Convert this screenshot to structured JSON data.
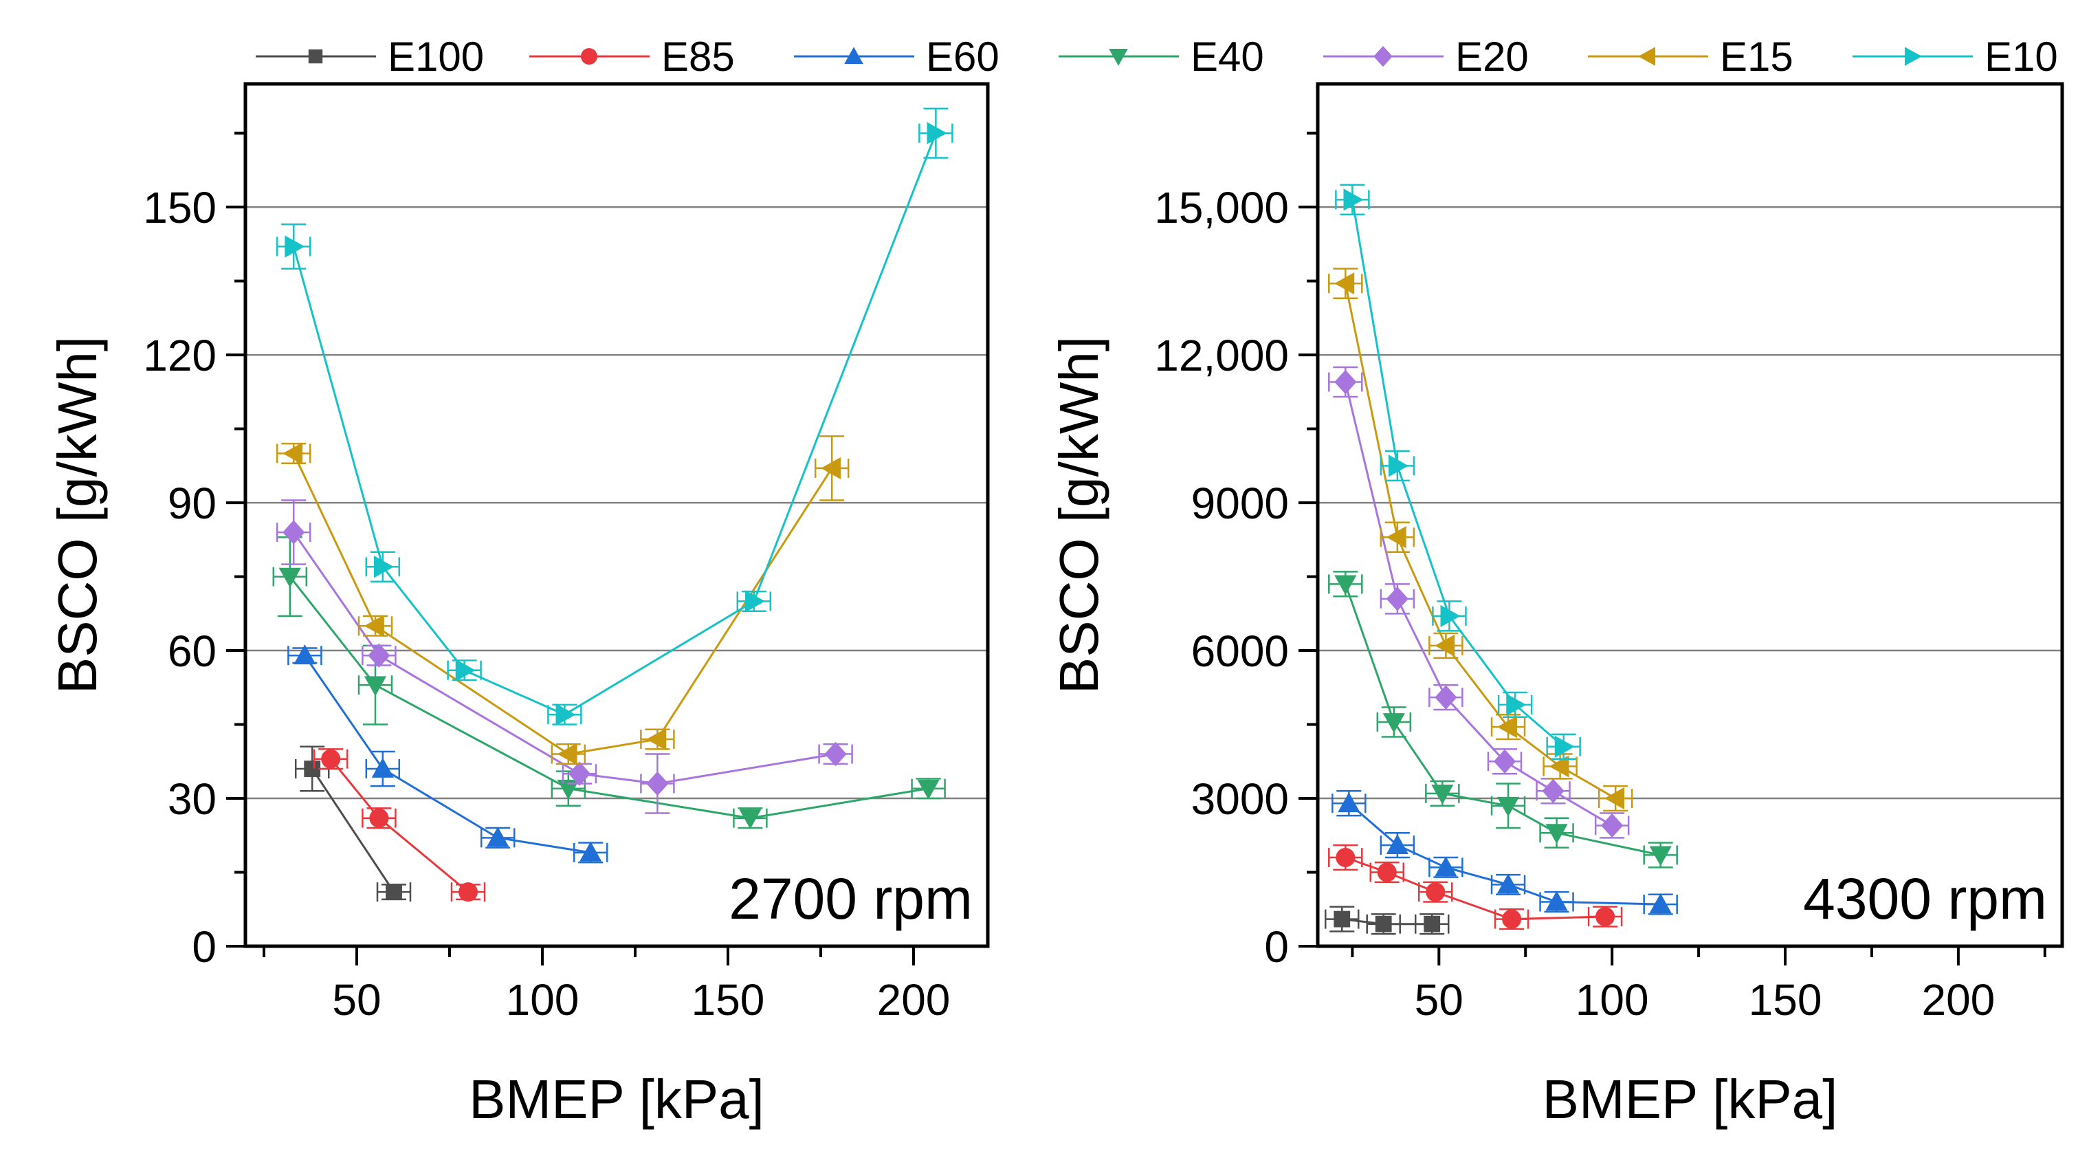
{
  "legend": [
    {
      "name": "E100",
      "color": "#4d4d4d",
      "marker": "square"
    },
    {
      "name": "E85",
      "color": "#e8383d",
      "marker": "circle"
    },
    {
      "name": "E60",
      "color": "#1f6fd6",
      "marker": "triangle-up"
    },
    {
      "name": "E40",
      "color": "#2ea66a",
      "marker": "triangle-down"
    },
    {
      "name": "E20",
      "color": "#a874dd",
      "marker": "diamond"
    },
    {
      "name": "E15",
      "color": "#c99a10",
      "marker": "triangle-left"
    },
    {
      "name": "E10",
      "color": "#14c2c8",
      "marker": "triangle-right"
    }
  ],
  "chart_data": [
    {
      "type": "line",
      "annotation": "2700 rpm",
      "xlabel": "BMEP [kPa]",
      "ylabel": "BSCO [g/kWh]",
      "xlim": [
        20,
        220
      ],
      "ylim": [
        0,
        175
      ],
      "xticks": [
        50,
        100,
        150,
        200
      ],
      "xtick_labels": [
        "50",
        "100",
        "150",
        "200"
      ],
      "yticks": [
        0,
        30,
        60,
        90,
        120,
        150
      ],
      "ytick_labels": [
        "0",
        "30",
        "60",
        "90",
        "120",
        "150"
      ],
      "grid": "horizontal",
      "series": [
        {
          "name": "E100",
          "x": [
            38,
            60
          ],
          "y": [
            36,
            11
          ],
          "yerr": [
            4.5,
            1.5
          ]
        },
        {
          "name": "E85",
          "x": [
            43,
            56,
            80
          ],
          "y": [
            38,
            26,
            11
          ],
          "yerr": [
            2.0,
            2.0,
            1.5
          ]
        },
        {
          "name": "E60",
          "x": [
            36,
            57,
            88,
            113
          ],
          "y": [
            59,
            36,
            22,
            19
          ],
          "yerr": [
            1.5,
            3.5,
            2.0,
            2.0
          ]
        },
        {
          "name": "E40",
          "x": [
            32,
            55,
            107,
            156,
            204
          ],
          "y": [
            75,
            53,
            32,
            26,
            32
          ],
          "yerr": [
            8.0,
            8.0,
            3.5,
            2.0,
            2.0
          ]
        },
        {
          "name": "E20",
          "x": [
            33,
            56,
            110,
            131,
            179
          ],
          "y": [
            84,
            59,
            35,
            33,
            39
          ],
          "yerr": [
            6.5,
            2.0,
            2.0,
            6.0,
            2.0
          ]
        },
        {
          "name": "E15",
          "x": [
            33,
            55,
            107,
            131,
            178
          ],
          "y": [
            100,
            65,
            39,
            42,
            97
          ],
          "yerr": [
            2.0,
            2.0,
            2.0,
            2.0,
            6.5
          ]
        },
        {
          "name": "E10",
          "x": [
            33,
            57,
            79,
            106,
            157,
            206
          ],
          "y": [
            142,
            77,
            56,
            47,
            70,
            165
          ],
          "yerr": [
            4.5,
            3.0,
            2.0,
            2.0,
            2.0,
            5.0
          ]
        }
      ]
    },
    {
      "type": "line",
      "annotation": "4300 rpm",
      "xlabel": "BMEP [kPa]",
      "ylabel": "BSCO [g/kWh]",
      "xlim": [
        15,
        230
      ],
      "ylim": [
        0,
        17500
      ],
      "xticks": [
        50,
        100,
        150,
        200
      ],
      "xtick_labels": [
        "50",
        "100",
        "150",
        "200"
      ],
      "yticks": [
        0,
        3000,
        6000,
        9000,
        12000,
        15000
      ],
      "ytick_labels": [
        "0",
        "3000",
        "6000",
        "9000",
        "12,000",
        "15,000"
      ],
      "grid": "horizontal",
      "series": [
        {
          "name": "E100",
          "x": [
            22,
            34,
            48
          ],
          "y": [
            550,
            450,
            450
          ],
          "yerr": [
            250,
            200,
            200
          ]
        },
        {
          "name": "E85",
          "x": [
            23,
            35,
            49,
            71,
            98
          ],
          "y": [
            1800,
            1500,
            1100,
            550,
            600
          ],
          "yerr": [
            250,
            200,
            200,
            200,
            200
          ]
        },
        {
          "name": "E60",
          "x": [
            24,
            38,
            52,
            70,
            84,
            114
          ],
          "y": [
            2900,
            2050,
            1600,
            1250,
            900,
            850
          ],
          "yerr": [
            250,
            250,
            200,
            200,
            200,
            200
          ]
        },
        {
          "name": "E40",
          "x": [
            23,
            37,
            51,
            70,
            84,
            114
          ],
          "y": [
            7350,
            4550,
            3100,
            2850,
            2300,
            1850
          ],
          "yerr": [
            250,
            300,
            250,
            450,
            300,
            250
          ]
        },
        {
          "name": "E20",
          "x": [
            23,
            38,
            52,
            69,
            83,
            100
          ],
          "y": [
            11450,
            7050,
            5050,
            3750,
            3150,
            2450
          ],
          "yerr": [
            300,
            300,
            250,
            250,
            250,
            250
          ]
        },
        {
          "name": "E15",
          "x": [
            23,
            38,
            52,
            70,
            85,
            101
          ],
          "y": [
            13450,
            8300,
            6100,
            4450,
            3650,
            3000
          ],
          "yerr": [
            300,
            300,
            250,
            250,
            250,
            250
          ]
        },
        {
          "name": "E10",
          "x": [
            25,
            38,
            53,
            72,
            86
          ],
          "y": [
            15150,
            9750,
            6700,
            4900,
            4050
          ],
          "yerr": [
            300,
            300,
            300,
            250,
            250
          ]
        }
      ]
    }
  ]
}
